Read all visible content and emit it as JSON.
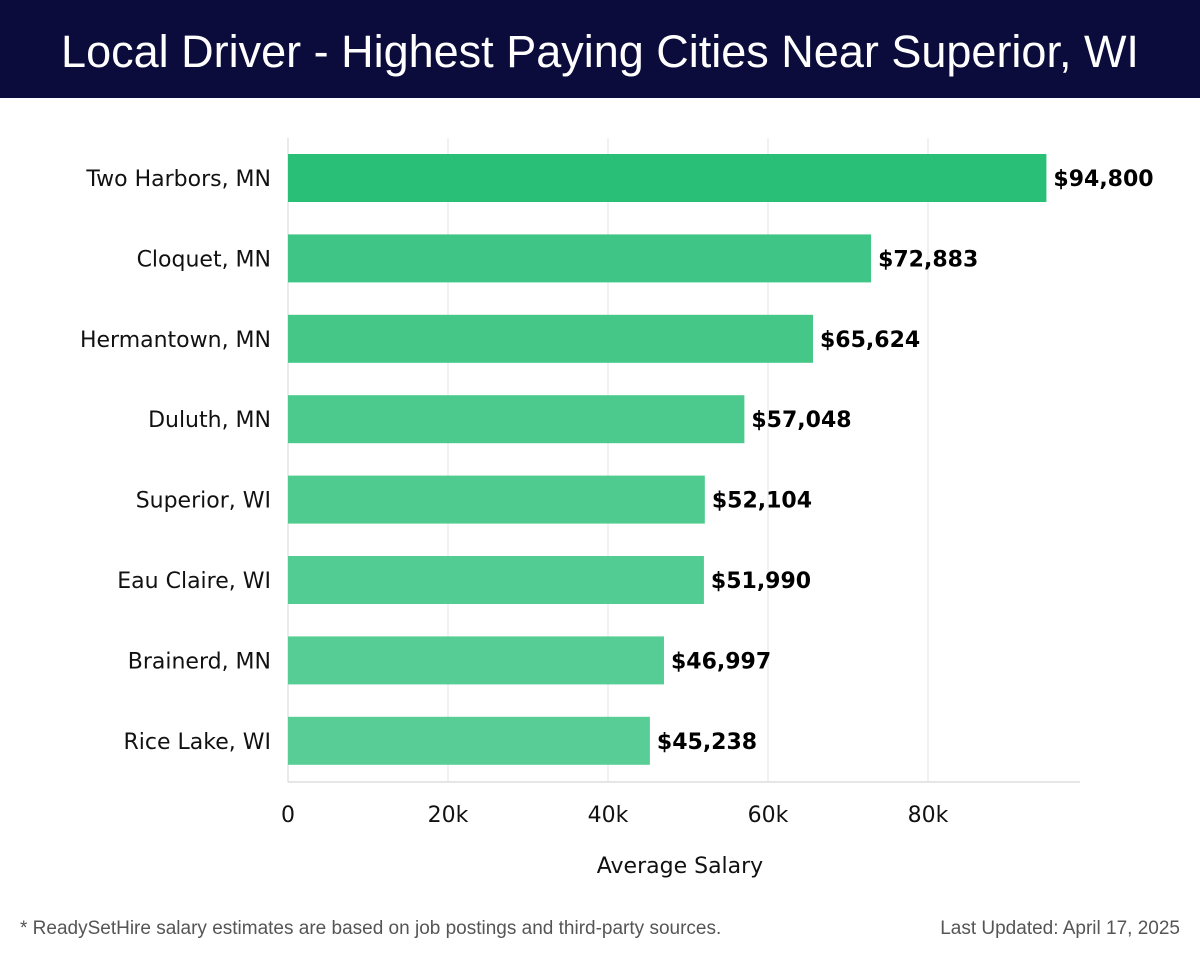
{
  "header": {
    "title": "Local Driver - Highest Paying Cities Near Superior, WI"
  },
  "chart_data": {
    "type": "bar",
    "orientation": "horizontal",
    "title": "Local Driver - Highest Paying Cities Near Superior, WI",
    "xlabel": "Average Salary",
    "ylabel": "",
    "xlim": [
      0,
      99000
    ],
    "x_ticks": [
      0,
      20000,
      40000,
      60000,
      80000
    ],
    "x_tick_labels": [
      "0",
      "20k",
      "40k",
      "60k",
      "80k"
    ],
    "grid": "vertical",
    "categories": [
      "Two Harbors, MN",
      "Cloquet, MN",
      "Hermantown, MN",
      "Duluth, MN",
      "Superior, WI",
      "Eau Claire, WI",
      "Brainerd, MN",
      "Rice Lake, WI"
    ],
    "values": [
      94800,
      72883,
      65624,
      57048,
      52104,
      51990,
      46997,
      45238
    ],
    "value_labels": [
      "$94,800",
      "$72,883",
      "$65,624",
      "$57,048",
      "$52,104",
      "$51,990",
      "$46,997",
      "$45,238"
    ],
    "bar_colors": [
      "#2abf76",
      "#3fc585",
      "#45c788",
      "#4cc98d",
      "#50cb90",
      "#52cc92",
      "#56cd95",
      "#58ce96"
    ]
  },
  "footer": {
    "note": "* ReadySetHire salary estimates are based on job postings and third-party sources.",
    "updated": "Last Updated: April 17, 2025"
  }
}
